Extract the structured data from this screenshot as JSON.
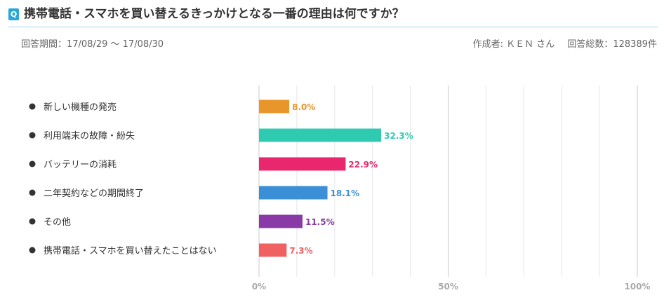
{
  "question": {
    "badge": "Q",
    "title": "携帯電話・スマホを買い替えるきっかけとなる一番の理由は何ですか？"
  },
  "meta": {
    "period": "回答期間：17/08/29 〜 17/08/30",
    "author": "作成者: ＫＥＮ さん",
    "total": "回答総数：128389件"
  },
  "chart_data": {
    "type": "bar",
    "orientation": "horizontal",
    "categories": [
      "新しい機種の発売",
      "利用端末の故障・紛失",
      "バッテリーの消耗",
      "二年契約などの期間終了",
      "その他",
      "携帯電話・スマホを買い替えたことはない"
    ],
    "values": [
      8.0,
      32.3,
      22.9,
      18.1,
      11.5,
      7.3
    ],
    "value_labels": [
      "8.0%",
      "32.3%",
      "22.9%",
      "18.1%",
      "11.5%",
      "7.3%"
    ],
    "colors": [
      "#e8952a",
      "#2fcbb1",
      "#e8276e",
      "#3a8fd6",
      "#8a3aa6",
      "#f06262"
    ],
    "xlim": [
      0,
      100
    ],
    "ticks": [
      0,
      50,
      100
    ],
    "tick_labels": [
      "0%",
      "50%",
      "100%"
    ],
    "grid": true
  }
}
